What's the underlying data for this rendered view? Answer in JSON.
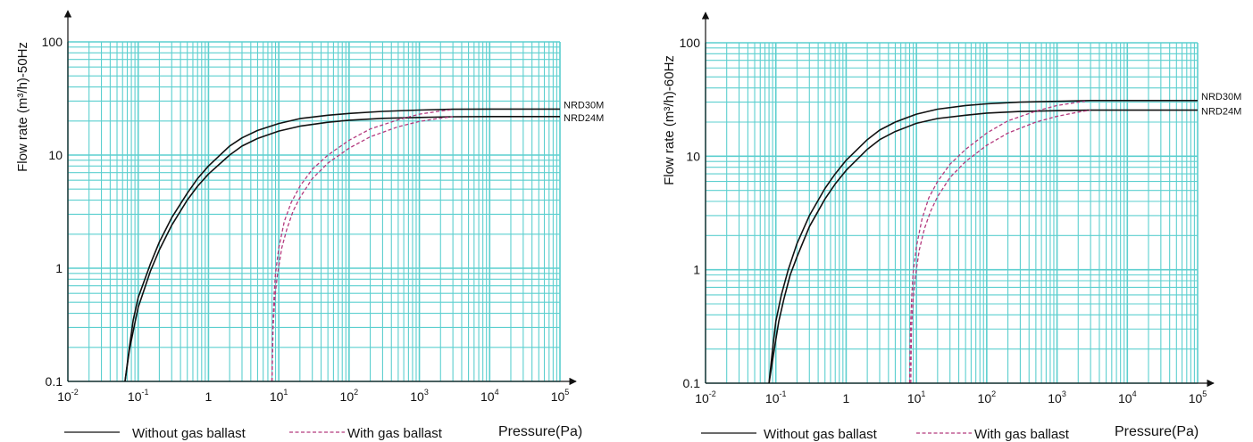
{
  "chart_data": [
    {
      "type": "line",
      "ylabel": "Flow rate (m³/h)-50Hz",
      "xlabel": "Pressure(Pa)",
      "x_scale": "log",
      "y_scale": "log",
      "xlim": [
        0.01,
        100000
      ],
      "ylim": [
        0.1,
        100
      ],
      "x_ticks": [
        {
          "value": 0.01,
          "base": "10",
          "exp": "-2"
        },
        {
          "value": 0.1,
          "base": "10",
          "exp": "-1"
        },
        {
          "value": 1,
          "base": "1",
          "exp": ""
        },
        {
          "value": 10,
          "base": "10",
          "exp": "1"
        },
        {
          "value": 100,
          "base": "10",
          "exp": "2"
        },
        {
          "value": 1000,
          "base": "10",
          "exp": "3"
        },
        {
          "value": 10000,
          "base": "10",
          "exp": "4"
        },
        {
          "value": 100000,
          "base": "10",
          "exp": "5"
        }
      ],
      "y_ticks": [
        {
          "value": 0.1,
          "label": "0.1"
        },
        {
          "value": 1,
          "label": "1"
        },
        {
          "value": 10,
          "label": "10"
        },
        {
          "value": 100,
          "label": "100"
        }
      ],
      "grid": true,
      "grid_color": "#5ccfcf",
      "series": [
        {
          "name": "NRD30M",
          "style": "solid",
          "color": "#111111",
          "points": [
            [
              0.065,
              0.1
            ],
            [
              0.075,
              0.2
            ],
            [
              0.085,
              0.35
            ],
            [
              0.1,
              0.55
            ],
            [
              0.15,
              1.1
            ],
            [
              0.2,
              1.7
            ],
            [
              0.3,
              2.8
            ],
            [
              0.5,
              4.6
            ],
            [
              0.7,
              6.2
            ],
            [
              1,
              8
            ],
            [
              2,
              12
            ],
            [
              3,
              14.2
            ],
            [
              5,
              16.5
            ],
            [
              10,
              19
            ],
            [
              20,
              21
            ],
            [
              50,
              22.5
            ],
            [
              100,
              23.3
            ],
            [
              300,
              24.3
            ],
            [
              1000,
              25
            ],
            [
              3000,
              25.4
            ],
            [
              10000,
              25.5
            ],
            [
              100000,
              25.5
            ]
          ]
        },
        {
          "name": "NRD24M",
          "style": "solid",
          "color": "#111111",
          "points": [
            [
              0.065,
              0.1
            ],
            [
              0.075,
              0.19
            ],
            [
              0.09,
              0.33
            ],
            [
              0.1,
              0.45
            ],
            [
              0.15,
              0.95
            ],
            [
              0.2,
              1.45
            ],
            [
              0.3,
              2.4
            ],
            [
              0.5,
              4
            ],
            [
              0.7,
              5.3
            ],
            [
              1,
              6.8
            ],
            [
              2,
              10
            ],
            [
              3,
              12
            ],
            [
              5,
              14
            ],
            [
              10,
              16.3
            ],
            [
              20,
              18
            ],
            [
              50,
              19.5
            ],
            [
              100,
              20.3
            ],
            [
              300,
              21.1
            ],
            [
              1000,
              21.5
            ],
            [
              3000,
              21.8
            ],
            [
              10000,
              21.9
            ],
            [
              100000,
              21.9
            ]
          ]
        },
        {
          "name": "",
          "style": "dashed",
          "color": "#b43a7e",
          "points": [
            [
              8,
              0.1
            ],
            [
              8.2,
              0.3
            ],
            [
              8.6,
              0.6
            ],
            [
              9,
              0.9
            ],
            [
              10,
              1.5
            ],
            [
              12,
              2.6
            ],
            [
              15,
              3.8
            ],
            [
              20,
              5.3
            ],
            [
              30,
              7.5
            ],
            [
              50,
              10
            ],
            [
              100,
              13.5
            ],
            [
              200,
              17
            ],
            [
              500,
              20.5
            ],
            [
              1000,
              23
            ],
            [
              2000,
              24.5
            ],
            [
              3000,
              25.2
            ]
          ]
        },
        {
          "name": "",
          "style": "dashed",
          "color": "#b43a7e",
          "points": [
            [
              8,
              0.1
            ],
            [
              8.3,
              0.3
            ],
            [
              8.8,
              0.55
            ],
            [
              9.5,
              0.85
            ],
            [
              11,
              1.5
            ],
            [
              13,
              2.2
            ],
            [
              16,
              3.2
            ],
            [
              20,
              4.2
            ],
            [
              30,
              6.2
            ],
            [
              50,
              8.5
            ],
            [
              100,
              11.5
            ],
            [
              200,
              14.5
            ],
            [
              500,
              17.8
            ],
            [
              1000,
              19.8
            ],
            [
              2000,
              21.2
            ],
            [
              3000,
              21.8
            ]
          ]
        }
      ]
    },
    {
      "type": "line",
      "ylabel": "Flow rate (m³/h)-60Hz",
      "xlabel": "Pressure(Pa)",
      "x_scale": "log",
      "y_scale": "log",
      "xlim": [
        0.01,
        100000
      ],
      "ylim": [
        0.1,
        100
      ],
      "x_ticks": [
        {
          "value": 0.01,
          "base": "10",
          "exp": "-2"
        },
        {
          "value": 0.1,
          "base": "10",
          "exp": "-1"
        },
        {
          "value": 1,
          "base": "1",
          "exp": ""
        },
        {
          "value": 10,
          "base": "10",
          "exp": "1"
        },
        {
          "value": 100,
          "base": "10",
          "exp": "2"
        },
        {
          "value": 1000,
          "base": "10",
          "exp": "3"
        },
        {
          "value": 10000,
          "base": "10",
          "exp": "4"
        },
        {
          "value": 100000,
          "base": "10",
          "exp": "5"
        }
      ],
      "y_ticks": [
        {
          "value": 0.1,
          "label": "0.1"
        },
        {
          "value": 1,
          "label": "1"
        },
        {
          "value": 10,
          "label": "10"
        },
        {
          "value": 100,
          "label": "100"
        }
      ],
      "grid": true,
      "grid_color": "#5ccfcf",
      "series": [
        {
          "name": "NRD30M",
          "style": "solid",
          "color": "#111111",
          "points": [
            [
              0.08,
              0.1
            ],
            [
              0.09,
              0.2
            ],
            [
              0.1,
              0.35
            ],
            [
              0.12,
              0.6
            ],
            [
              0.15,
              1
            ],
            [
              0.2,
              1.7
            ],
            [
              0.3,
              3
            ],
            [
              0.5,
              5.2
            ],
            [
              0.7,
              7
            ],
            [
              1,
              9.2
            ],
            [
              2,
              14
            ],
            [
              3,
              17
            ],
            [
              5,
              20
            ],
            [
              10,
              23.5
            ],
            [
              20,
              26
            ],
            [
              50,
              28
            ],
            [
              100,
              29
            ],
            [
              300,
              30
            ],
            [
              1000,
              30.5
            ],
            [
              3000,
              31
            ],
            [
              10000,
              31
            ],
            [
              100000,
              31
            ]
          ]
        },
        {
          "name": "NRD24M",
          "style": "solid",
          "color": "#111111",
          "points": [
            [
              0.08,
              0.1
            ],
            [
              0.095,
              0.2
            ],
            [
              0.11,
              0.35
            ],
            [
              0.13,
              0.55
            ],
            [
              0.16,
              0.9
            ],
            [
              0.2,
              1.3
            ],
            [
              0.3,
              2.4
            ],
            [
              0.5,
              4.2
            ],
            [
              0.7,
              5.7
            ],
            [
              1,
              7.5
            ],
            [
              2,
              11.5
            ],
            [
              3,
              14
            ],
            [
              5,
              16.5
            ],
            [
              10,
              19.5
            ],
            [
              20,
              21.5
            ],
            [
              50,
              23
            ],
            [
              100,
              24
            ],
            [
              300,
              24.8
            ],
            [
              1000,
              25.2
            ],
            [
              3000,
              25.5
            ],
            [
              10000,
              25.5
            ],
            [
              100000,
              25.5
            ]
          ]
        },
        {
          "name": "",
          "style": "dashed",
          "color": "#b43a7e",
          "points": [
            [
              8,
              0.1
            ],
            [
              8.2,
              0.3
            ],
            [
              8.6,
              0.6
            ],
            [
              9,
              0.95
            ],
            [
              10,
              1.6
            ],
            [
              12,
              2.8
            ],
            [
              15,
              4.3
            ],
            [
              20,
              6
            ],
            [
              30,
              8.5
            ],
            [
              50,
              11.5
            ],
            [
              100,
              16
            ],
            [
              200,
              20.5
            ],
            [
              500,
              25
            ],
            [
              1000,
              28
            ],
            [
              2000,
              30
            ],
            [
              2500,
              30.5
            ]
          ]
        },
        {
          "name": "",
          "style": "dashed",
          "color": "#b43a7e",
          "points": [
            [
              8.3,
              0.1
            ],
            [
              8.5,
              0.3
            ],
            [
              9,
              0.55
            ],
            [
              9.6,
              0.85
            ],
            [
              11,
              1.5
            ],
            [
              13,
              2.3
            ],
            [
              16,
              3.3
            ],
            [
              20,
              4.4
            ],
            [
              30,
              6.5
            ],
            [
              50,
              9
            ],
            [
              100,
              12.5
            ],
            [
              200,
              16
            ],
            [
              500,
              20
            ],
            [
              1000,
              22.5
            ],
            [
              2000,
              24.5
            ],
            [
              3000,
              25.5
            ]
          ]
        }
      ]
    }
  ],
  "legend": {
    "solid_label": "Without gas ballast",
    "dashed_label": "With gas ballast"
  }
}
